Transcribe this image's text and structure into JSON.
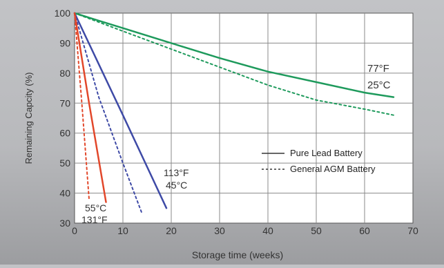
{
  "chart_data": {
    "type": "line",
    "title": "",
    "xlabel": "Storage time (weeks)",
    "ylabel": "Remaining Capcity (%)",
    "xlim": [
      0,
      70
    ],
    "ylim": [
      30,
      100
    ],
    "x_ticks": [
      "0",
      "10",
      "20",
      "30",
      "40",
      "50",
      "60",
      "70"
    ],
    "y_ticks": [
      "30",
      "40",
      "50",
      "60",
      "70",
      "80",
      "90",
      "100"
    ],
    "grid": true,
    "legend_position": "right-middle",
    "legend": [
      {
        "label": "Pure Lead Battery",
        "style": "solid"
      },
      {
        "label": "General AGM Battery",
        "style": "dotted"
      }
    ],
    "temperature_labels": [
      {
        "id": "t25",
        "lines": [
          "77°F",
          "25°C"
        ]
      },
      {
        "id": "t45",
        "lines": [
          "113°F",
          "45°C"
        ]
      },
      {
        "id": "t55",
        "lines": [
          "55°C",
          "131°F"
        ]
      }
    ],
    "series": [
      {
        "group": "25°C",
        "battery": "Pure Lead Battery",
        "style": "solid",
        "color": "#1e9a5c",
        "x": [
          0,
          5,
          10,
          20,
          30,
          40,
          50,
          60,
          66
        ],
        "y": [
          100,
          97.5,
          95,
          90,
          85,
          80.5,
          77,
          73.5,
          72
        ]
      },
      {
        "group": "25°C",
        "battery": "General AGM Battery",
        "style": "dotted",
        "color": "#1e9a5c",
        "x": [
          0,
          10,
          20,
          30,
          40,
          50,
          60,
          66
        ],
        "y": [
          100,
          94,
          88,
          82,
          76,
          71,
          68,
          66
        ]
      },
      {
        "group": "45°C",
        "battery": "Pure Lead Battery",
        "style": "solid",
        "color": "#3e4aa6",
        "x": [
          0,
          10,
          19
        ],
        "y": [
          100,
          66,
          35
        ]
      },
      {
        "group": "45°C",
        "battery": "General AGM Battery",
        "style": "dotted",
        "color": "#3e4aa6",
        "x": [
          0,
          5,
          10,
          14
        ],
        "y": [
          100,
          72,
          50,
          33
        ]
      },
      {
        "group": "55°C",
        "battery": "Pure Lead Battery",
        "style": "solid",
        "color": "#e2472a",
        "x": [
          0,
          3,
          6.5
        ],
        "y": [
          100,
          70,
          37
        ]
      },
      {
        "group": "55°C",
        "battery": "General AGM Battery",
        "style": "dotted",
        "color": "#e2472a",
        "x": [
          0,
          1.5,
          3
        ],
        "y": [
          100,
          70,
          38
        ]
      }
    ]
  }
}
